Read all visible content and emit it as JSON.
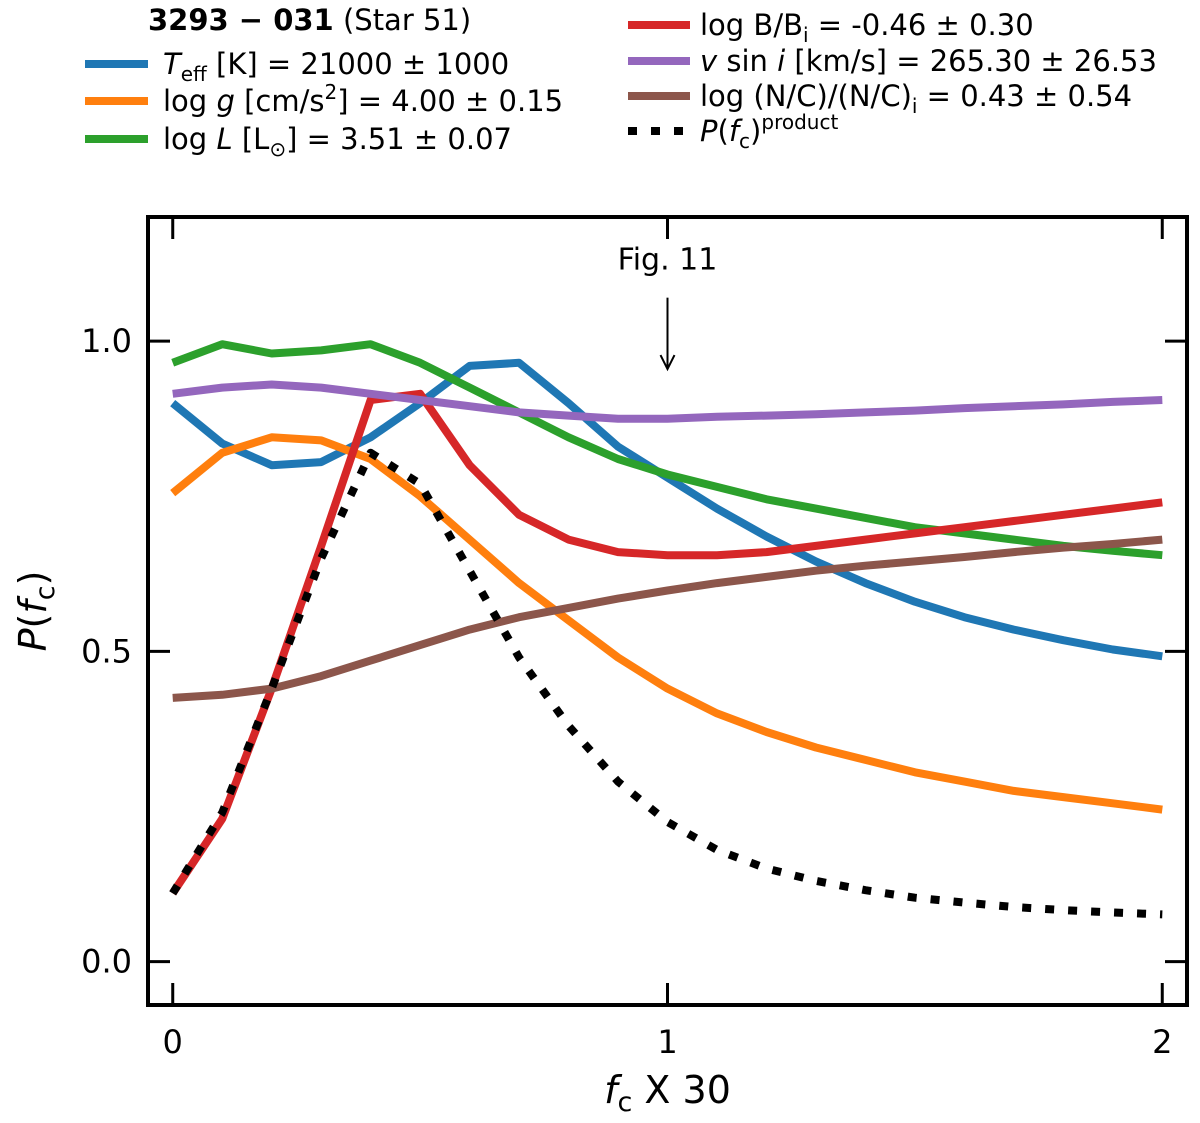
{
  "chart_data": {
    "type": "line",
    "title_bold": "3293 − 031",
    "title_rest": " (Star 51)",
    "xlabel": "f",
    "xlabel_sub": "c",
    "xlabel_suffix": " X 30",
    "ylabel": "P(f",
    "ylabel_sub": "c",
    "ylabel_close": ")",
    "xlim": [
      -0.05,
      2.05
    ],
    "ylim": [
      -0.07,
      1.2
    ],
    "xticks": [
      0,
      1,
      2
    ],
    "xtick_labels": [
      "0",
      "1",
      "2"
    ],
    "yticks": [
      0.0,
      0.5,
      1.0
    ],
    "ytick_labels": [
      "0.0",
      "0.5",
      "1.0"
    ],
    "annotation": {
      "text": "Fig. 11",
      "x": 1.0,
      "y_text": 1.115,
      "y_arrow_start": 1.07,
      "y_arrow_end": 0.955
    },
    "x": [
      0,
      0.1,
      0.2,
      0.3,
      0.4,
      0.5,
      0.6,
      0.7,
      0.8,
      0.9,
      1.0,
      1.1,
      1.2,
      1.3,
      1.4,
      1.5,
      1.6,
      1.7,
      1.8,
      1.9,
      2.0
    ],
    "series": [
      {
        "name": "teff",
        "label": "T_eff [K] = 21000 ± 1000",
        "color": "#1f77b4",
        "style": "solid",
        "values": [
          0.9,
          0.835,
          0.8,
          0.805,
          0.845,
          0.9,
          0.96,
          0.965,
          0.9,
          0.83,
          0.78,
          0.73,
          0.685,
          0.645,
          0.61,
          0.58,
          0.555,
          0.535,
          0.518,
          0.503,
          0.492
        ]
      },
      {
        "name": "logg",
        "label": "log g [cm/s2] = 4.00 ± 0.15",
        "color": "#ff7f0e",
        "style": "solid",
        "values": [
          0.755,
          0.82,
          0.845,
          0.84,
          0.81,
          0.75,
          0.68,
          0.61,
          0.55,
          0.49,
          0.44,
          0.4,
          0.37,
          0.345,
          0.325,
          0.305,
          0.29,
          0.275,
          0.265,
          0.255,
          0.245
        ]
      },
      {
        "name": "logl",
        "label": "log L [L☉] = 3.51 ± 0.07",
        "color": "#2ca02c",
        "style": "solid",
        "values": [
          0.965,
          0.995,
          0.98,
          0.985,
          0.995,
          0.965,
          0.925,
          0.885,
          0.845,
          0.81,
          0.785,
          0.765,
          0.745,
          0.73,
          0.715,
          0.7,
          0.69,
          0.68,
          0.67,
          0.662,
          0.655
        ]
      },
      {
        "name": "logb",
        "label": "log B/B_i = -0.46 ± 0.30",
        "color": "#d62728",
        "style": "solid",
        "values": [
          0.11,
          0.23,
          0.44,
          0.67,
          0.905,
          0.915,
          0.8,
          0.72,
          0.68,
          0.66,
          0.655,
          0.655,
          0.66,
          0.67,
          0.68,
          0.69,
          0.7,
          0.71,
          0.72,
          0.73,
          0.74
        ]
      },
      {
        "name": "vsini",
        "label": "v sin i [km/s] = 265.30 ± 26.53",
        "color": "#9467bd",
        "style": "solid",
        "values": [
          0.915,
          0.925,
          0.93,
          0.925,
          0.915,
          0.905,
          0.895,
          0.885,
          0.88,
          0.875,
          0.875,
          0.878,
          0.88,
          0.882,
          0.885,
          0.888,
          0.892,
          0.895,
          0.898,
          0.902,
          0.905
        ]
      },
      {
        "name": "nc",
        "label": "log (N/C)/(N/C)_i = 0.43 ± 0.54",
        "color": "#8c564b",
        "style": "solid",
        "values": [
          0.425,
          0.43,
          0.44,
          0.46,
          0.485,
          0.51,
          0.535,
          0.555,
          0.57,
          0.585,
          0.598,
          0.61,
          0.62,
          0.63,
          0.638,
          0.645,
          0.652,
          0.66,
          0.667,
          0.673,
          0.68
        ]
      },
      {
        "name": "product",
        "label": "P(f_c)^product",
        "color": "#000000",
        "style": "dotted",
        "values": [
          0.11,
          0.24,
          0.44,
          0.65,
          0.82,
          0.77,
          0.63,
          0.49,
          0.38,
          0.29,
          0.225,
          0.18,
          0.15,
          0.13,
          0.115,
          0.103,
          0.095,
          0.088,
          0.083,
          0.079,
          0.076
        ]
      }
    ],
    "legend": {
      "title_bold": "3293 − 031",
      "title_rest": " (Star 51)",
      "entries": [
        {
          "key": "teff",
          "parts": [
            [
              "i",
              "T"
            ],
            [
              "sub",
              "eff"
            ],
            [
              "n",
              " [K] = 21000 ± 1000"
            ]
          ]
        },
        {
          "key": "logg",
          "parts": [
            [
              "n",
              "log "
            ],
            [
              "i",
              "g"
            ],
            [
              "n",
              " [cm/s"
            ],
            [
              "sup",
              "2"
            ],
            [
              "n",
              "] = 4.00 ± 0.15"
            ]
          ]
        },
        {
          "key": "logl",
          "parts": [
            [
              "n",
              "log "
            ],
            [
              "i",
              "L"
            ],
            [
              "n",
              " [L"
            ],
            [
              "sub",
              "⊙"
            ],
            [
              "n",
              "] = 3.51 ± 0.07"
            ]
          ]
        },
        {
          "key": "logb",
          "parts": [
            [
              "n",
              "log B/B"
            ],
            [
              "sub",
              "i"
            ],
            [
              "n",
              " = -0.46 ± 0.30"
            ]
          ]
        },
        {
          "key": "vsini",
          "parts": [
            [
              "i",
              "v"
            ],
            [
              "n",
              " sin "
            ],
            [
              "i",
              "i"
            ],
            [
              "n",
              " [km/s] = 265.30 ± 26.53"
            ]
          ]
        },
        {
          "key": "nc",
          "parts": [
            [
              "n",
              "log (N/C)/(N/C)"
            ],
            [
              "sub",
              "i"
            ],
            [
              "n",
              " = 0.43 ± 0.54"
            ]
          ]
        },
        {
          "key": "product",
          "parts": [
            [
              "i",
              "P"
            ],
            [
              "n",
              "("
            ],
            [
              "i",
              "f"
            ],
            [
              "sub",
              "c"
            ],
            [
              "n",
              ")"
            ],
            [
              "sup",
              "product"
            ]
          ]
        }
      ]
    }
  }
}
